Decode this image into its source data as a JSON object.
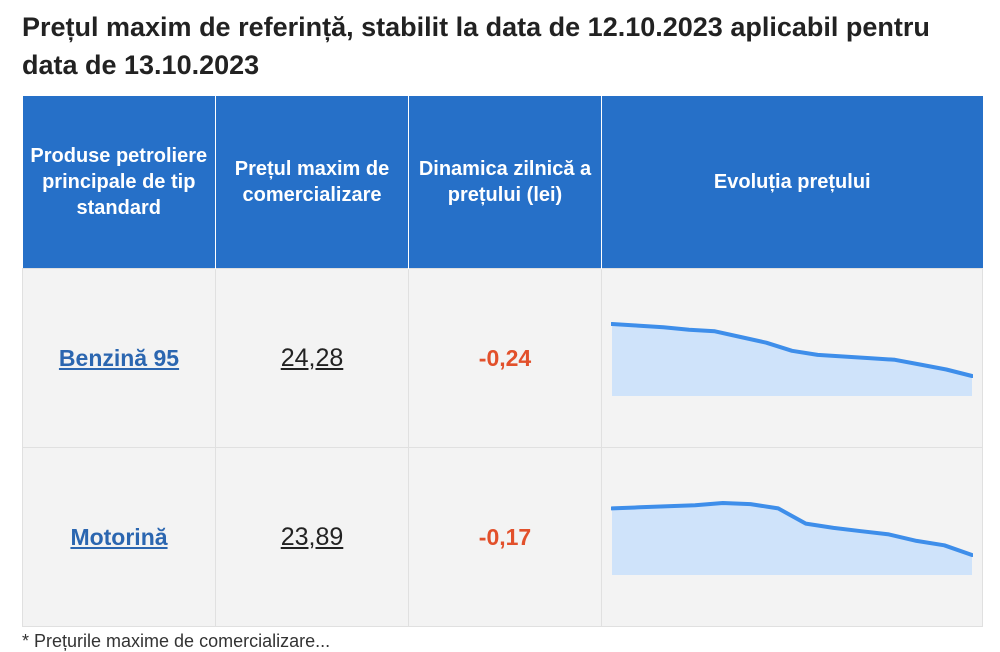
{
  "title": "Prețul maxim de referință, stabilit la data de 12.10.2023 aplicabil pentru data de 13.10.2023",
  "table": {
    "headers": [
      "Produse petroliere principale de tip standard",
      "Prețul maxim de comercializare",
      "Dinamica zilnică a prețului (lei)",
      "Evoluția prețului"
    ],
    "rows": [
      {
        "product": "Benzină 95",
        "price": "24,28",
        "dynamic": "-0,24",
        "trend": [
          23.6,
          23.58,
          23.56,
          23.53,
          23.51,
          23.44,
          23.37,
          23.27,
          23.22,
          23.2,
          23.18,
          23.16,
          23.1,
          23.04,
          22.96
        ]
      },
      {
        "product": "Motorină",
        "price": "23,89",
        "dynamic": "-0,17",
        "trend": [
          23.22,
          23.23,
          23.24,
          23.25,
          23.27,
          23.26,
          23.22,
          23.08,
          23.04,
          23.01,
          22.98,
          22.92,
          22.88,
          22.79
        ]
      }
    ]
  },
  "colors": {
    "header_bg": "#2670c8",
    "link": "#2b66b0",
    "negative": "#e2502b",
    "spark_line": "#3e8eea",
    "spark_fill": "#cfe3fa"
  },
  "footnote": "* Prețurile maxime de comercializare..."
}
